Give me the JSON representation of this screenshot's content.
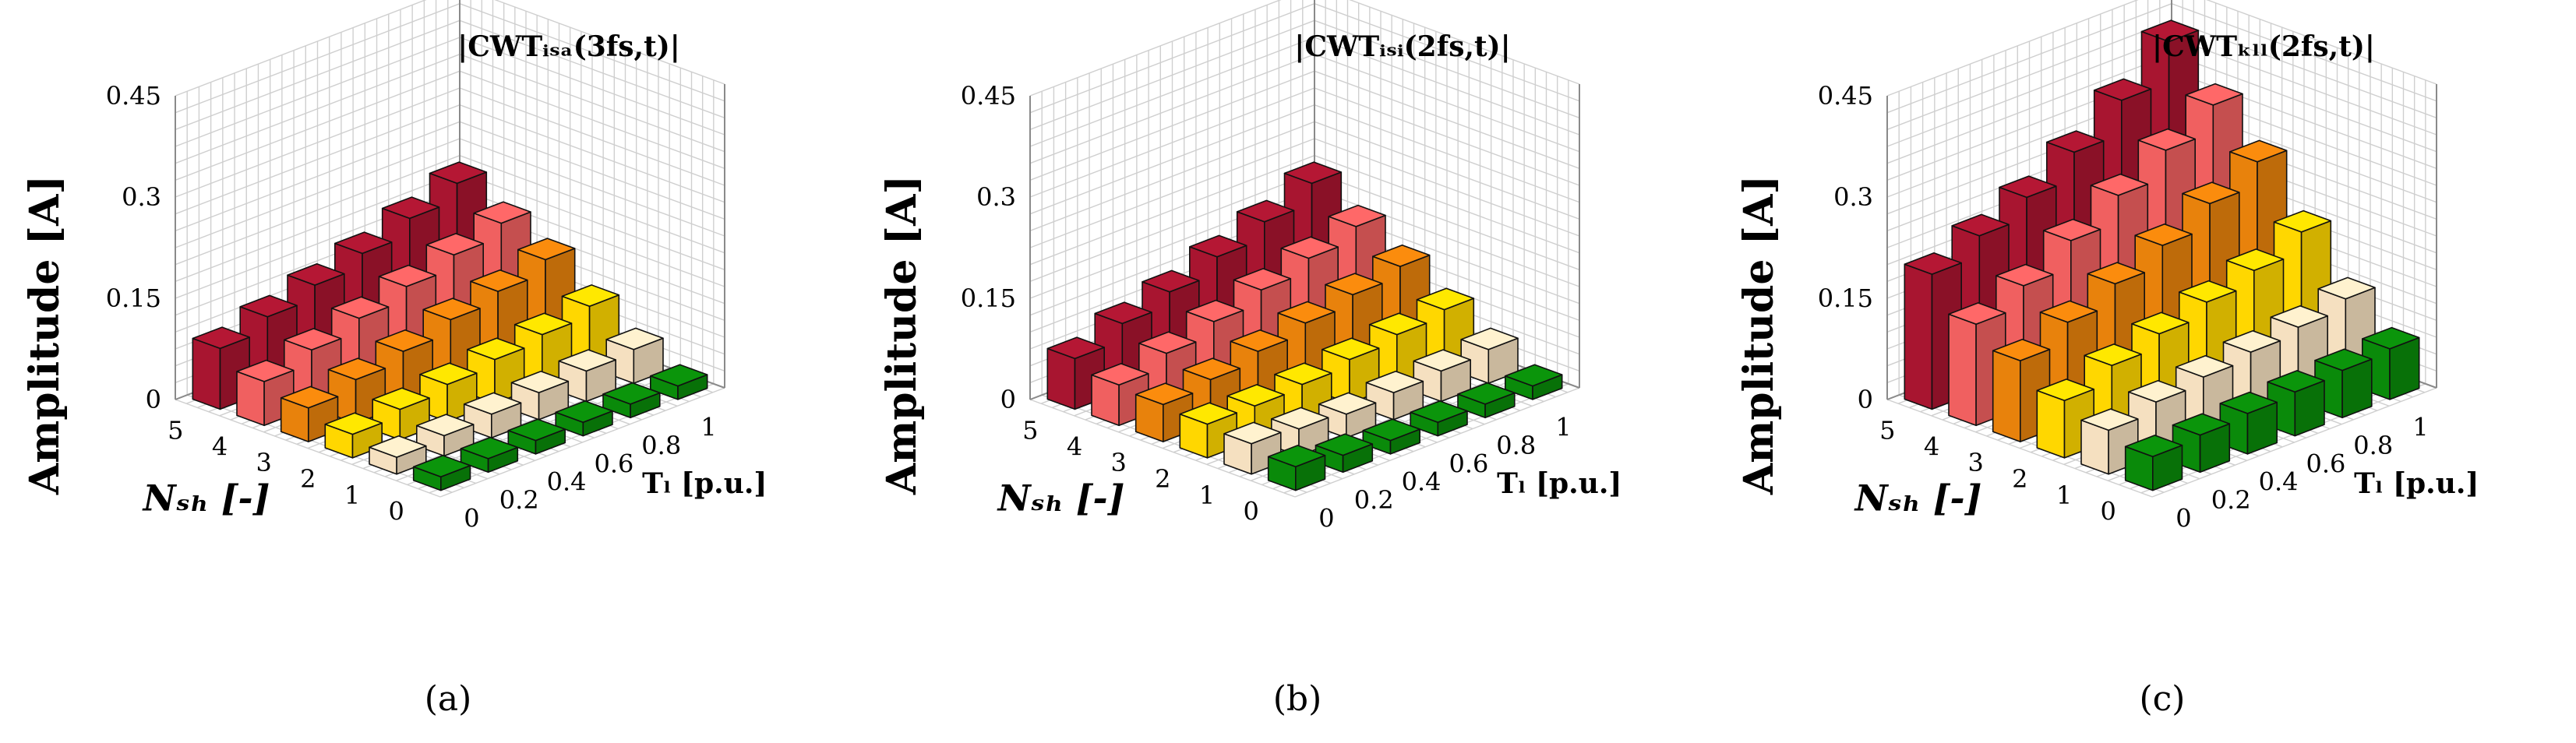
{
  "chart_data": [
    {
      "type": "bar3d",
      "title": "|CWTᵢₛₐ(3fs,t)|",
      "panel_label": "(a)",
      "ylabel": "Amplitude [A]",
      "xlabel": "Nₛₕ [-]",
      "zlabel_x": "Tₗ [p.u.]",
      "nsh_ticks": [
        "0",
        "1",
        "2",
        "3",
        "4",
        "5"
      ],
      "tl_ticks": [
        "0",
        "0.2",
        "0.4",
        "0.6",
        "0.8",
        "1"
      ],
      "z_ticks": [
        "0",
        "0.15",
        "0.3",
        "0.45"
      ],
      "zlim": [
        0,
        0.45
      ],
      "series": [
        {
          "nsh": 0,
          "values": [
            0.02,
            0.02,
            0.02,
            0.02,
            0.02,
            0.02
          ]
        },
        {
          "nsh": 1,
          "values": [
            0.025,
            0.03,
            0.035,
            0.04,
            0.045,
            0.05
          ]
        },
        {
          "nsh": 2,
          "values": [
            0.035,
            0.045,
            0.055,
            0.065,
            0.075,
            0.09
          ]
        },
        {
          "nsh": 3,
          "values": [
            0.05,
            0.065,
            0.08,
            0.1,
            0.115,
            0.135
          ]
        },
        {
          "nsh": 4,
          "values": [
            0.065,
            0.085,
            0.105,
            0.125,
            0.145,
            0.165
          ]
        },
        {
          "nsh": 5,
          "values": [
            0.09,
            0.11,
            0.13,
            0.15,
            0.175,
            0.2
          ]
        }
      ]
    },
    {
      "type": "bar3d",
      "title": "|CWTᵢₛᵢ(2fs,t)|",
      "panel_label": "(b)",
      "ylabel": "Amplitude [A]",
      "xlabel": "Nₛₕ [-]",
      "zlabel_x": "Tₗ [p.u.]",
      "nsh_ticks": [
        "0",
        "1",
        "2",
        "3",
        "4",
        "5"
      ],
      "tl_ticks": [
        "0",
        "0.2",
        "0.4",
        "0.6",
        "0.8",
        "1"
      ],
      "z_ticks": [
        "0",
        "0.15",
        "0.3",
        "0.45"
      ],
      "zlim": [
        0,
        0.45
      ],
      "series": [
        {
          "nsh": 0,
          "values": [
            0.035,
            0.025,
            0.02,
            0.02,
            0.02,
            0.02
          ]
        },
        {
          "nsh": 1,
          "values": [
            0.045,
            0.04,
            0.035,
            0.04,
            0.045,
            0.05
          ]
        },
        {
          "nsh": 2,
          "values": [
            0.05,
            0.05,
            0.055,
            0.065,
            0.075,
            0.085
          ]
        },
        {
          "nsh": 3,
          "values": [
            0.055,
            0.065,
            0.08,
            0.095,
            0.11,
            0.125
          ]
        },
        {
          "nsh": 4,
          "values": [
            0.06,
            0.08,
            0.1,
            0.12,
            0.14,
            0.16
          ]
        },
        {
          "nsh": 5,
          "values": [
            0.075,
            0.1,
            0.12,
            0.145,
            0.17,
            0.2
          ]
        }
      ]
    },
    {
      "type": "bar3d",
      "title": "|CWTₖₗₗ(2fs,t)|",
      "panel_label": "(c)",
      "ylabel": "Amplitude [A]",
      "xlabel": "Nₛₕ [-]",
      "zlabel_x": "Tₗ [p.u.]",
      "nsh_ticks": [
        "0",
        "1",
        "2",
        "3",
        "4",
        "5"
      ],
      "tl_ticks": [
        "0",
        "0.2",
        "0.4",
        "0.6",
        "0.8",
        "1"
      ],
      "z_ticks": [
        "0",
        "0.15",
        "0.3",
        "0.45"
      ],
      "zlim": [
        0,
        0.45
      ],
      "series": [
        {
          "nsh": 0,
          "values": [
            0.05,
            0.055,
            0.06,
            0.065,
            0.07,
            0.075
          ]
        },
        {
          "nsh": 1,
          "values": [
            0.065,
            0.08,
            0.09,
            0.1,
            0.11,
            0.125
          ]
        },
        {
          "nsh": 2,
          "values": [
            0.085,
            0.11,
            0.13,
            0.15,
            0.17,
            0.2
          ]
        },
        {
          "nsh": 3,
          "values": [
            0.12,
            0.15,
            0.18,
            0.21,
            0.245,
            0.28
          ]
        },
        {
          "nsh": 4,
          "values": [
            0.15,
            0.18,
            0.22,
            0.26,
            0.3,
            0.34
          ]
        },
        {
          "nsh": 5,
          "values": [
            0.2,
            0.23,
            0.26,
            0.3,
            0.35,
            0.41
          ]
        }
      ]
    }
  ],
  "colors": {
    "nsh0": "#0a8a0a",
    "nsh1": "#f5e0c0",
    "nsh2": "#ffd700",
    "nsh3": "#e8820c",
    "nsh4": "#f06060",
    "nsh5": "#a81530"
  }
}
